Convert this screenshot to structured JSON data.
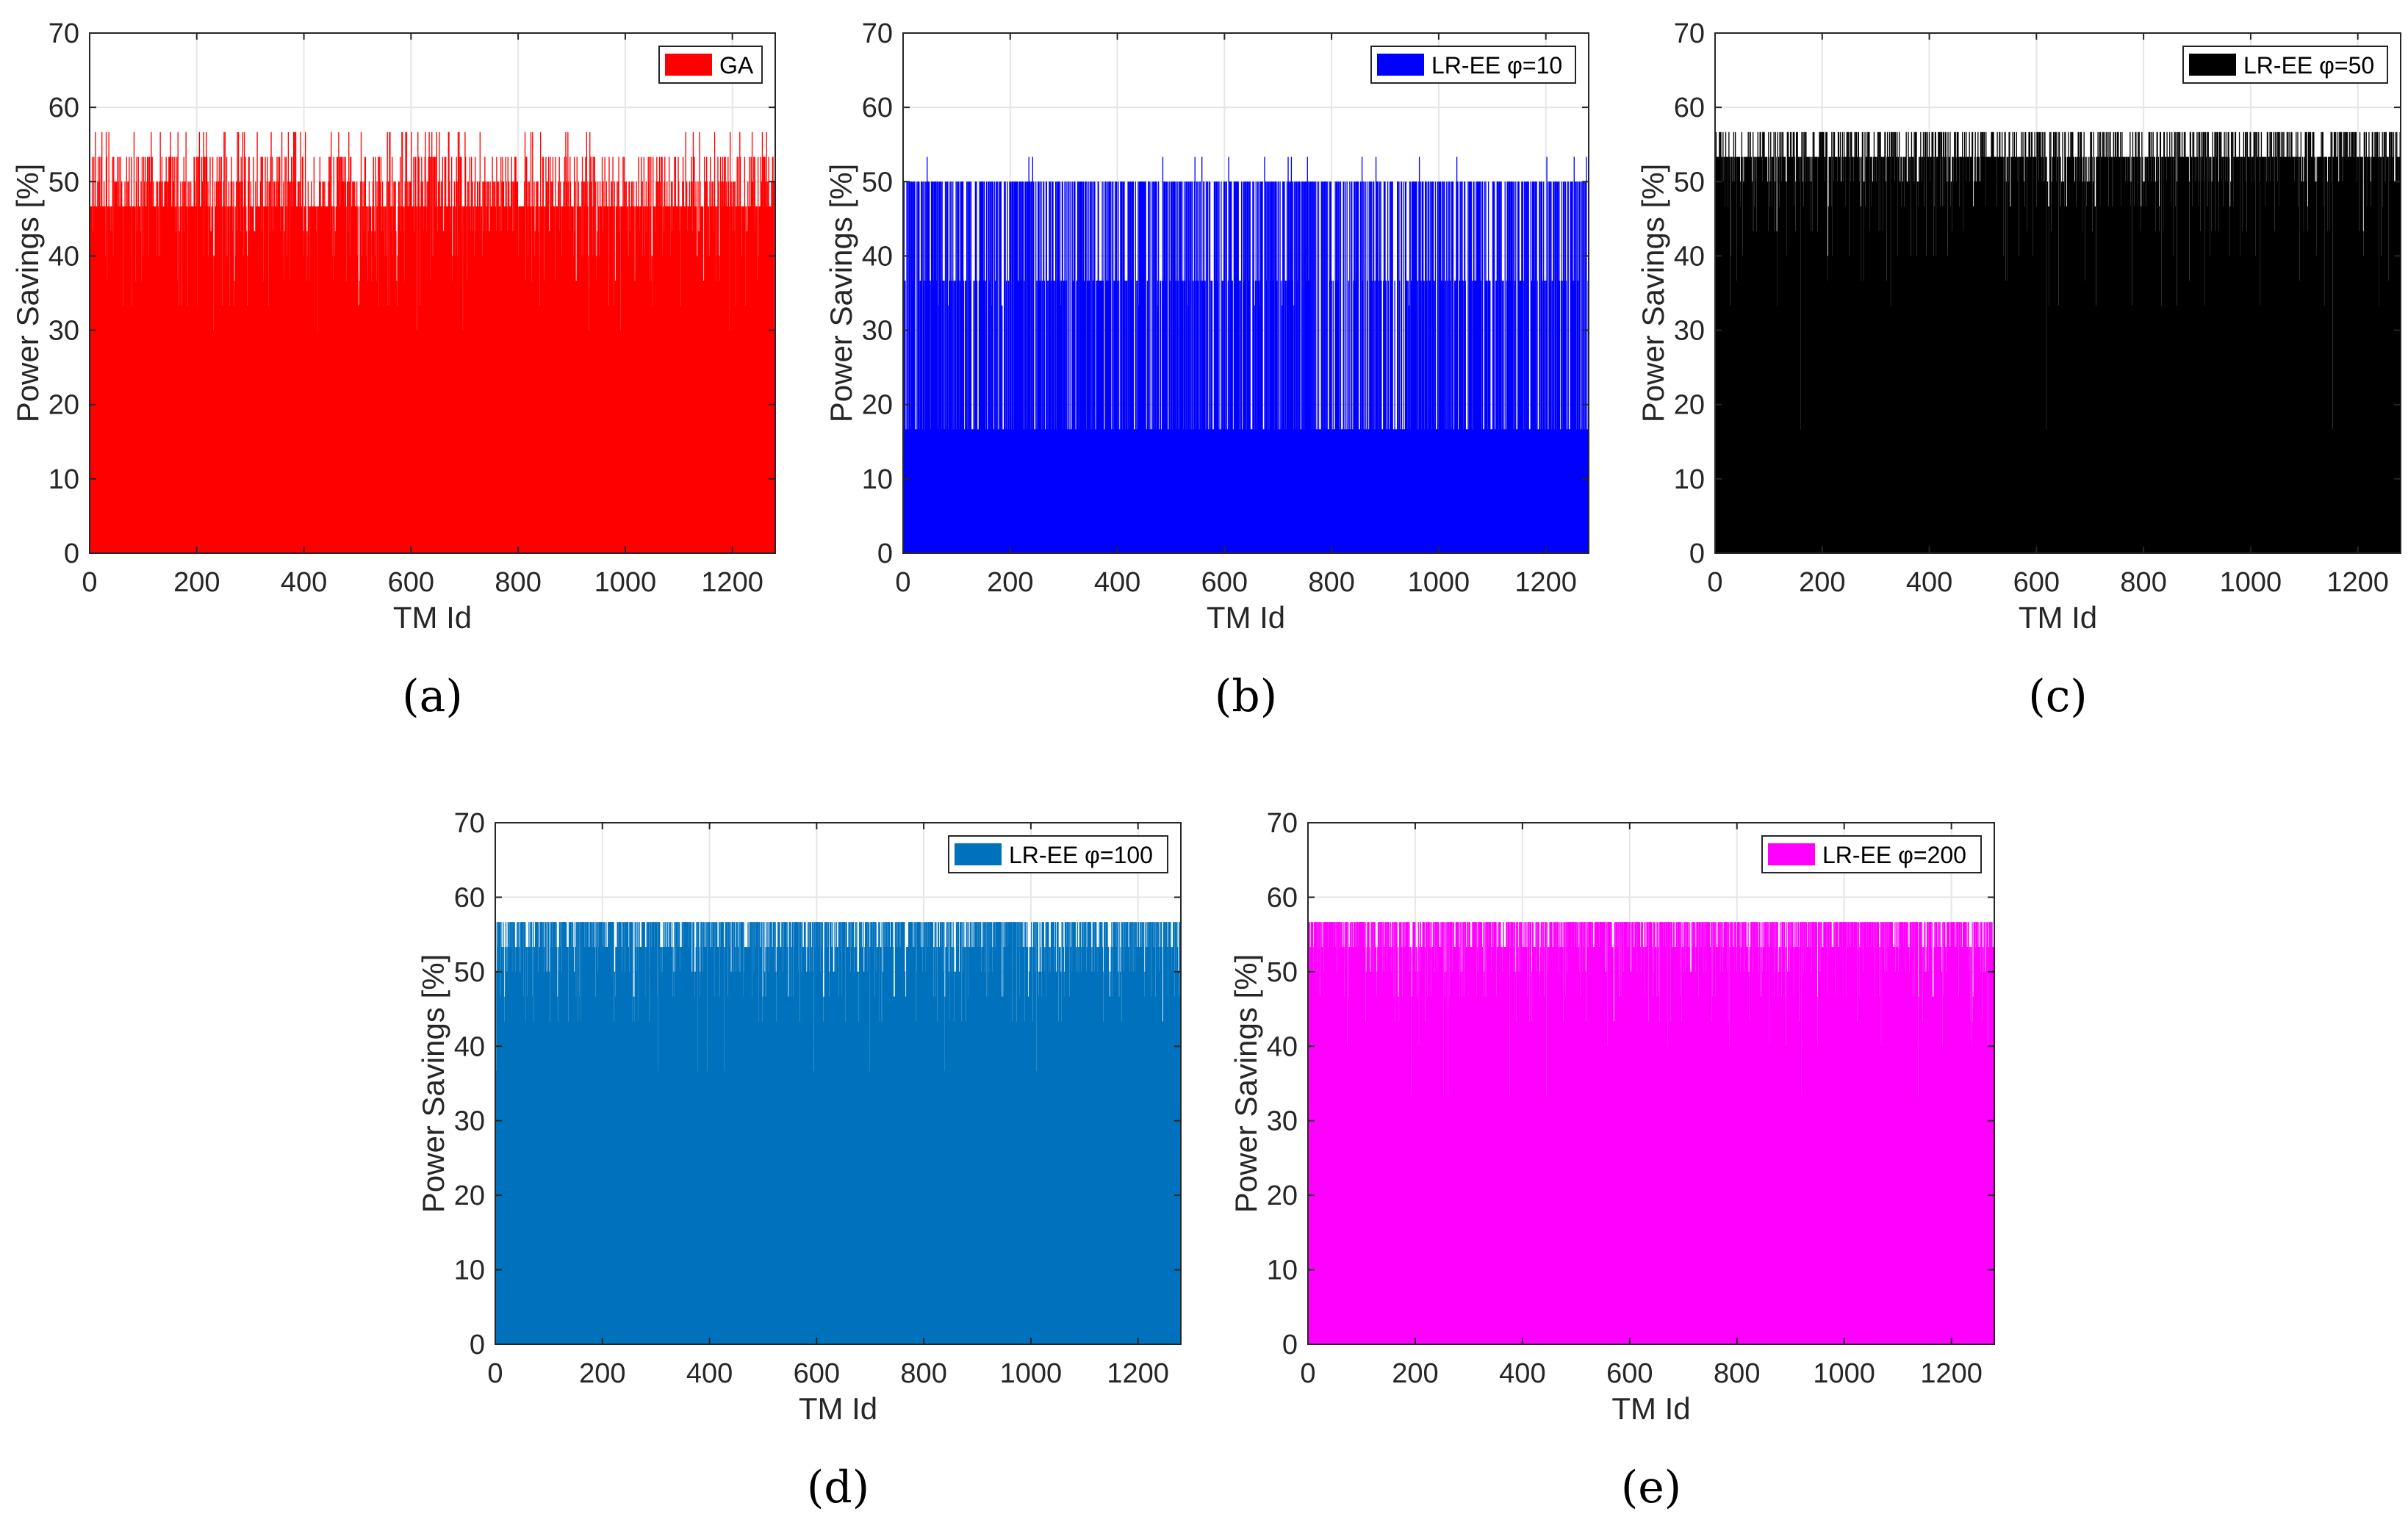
{
  "chart_data": [
    {
      "type": "bar",
      "panel_label": "(a)",
      "title": "",
      "legend": "GA",
      "legend_placement": "top-right",
      "color": "#ff0000",
      "xlabel": "TM Id",
      "ylabel": "Power Savings [%]",
      "xlim": [
        0,
        1280
      ],
      "ylim": [
        0,
        70
      ],
      "xticks": [
        0,
        200,
        400,
        600,
        800,
        1000,
        1200
      ],
      "yticks": [
        0,
        10,
        20,
        30,
        40,
        50,
        60,
        70
      ],
      "grid": true,
      "n_points": 1280,
      "levels": [
        46.67,
        50.0,
        53.33,
        56.67,
        43.33,
        40.0,
        36.67,
        33.33,
        30.0
      ],
      "level_weights": [
        0.4,
        0.2,
        0.16,
        0.07,
        0.07,
        0.05,
        0.03,
        0.015,
        0.005
      ],
      "seed": 11
    },
    {
      "type": "bar",
      "panel_label": "(b)",
      "title": "",
      "legend": "LR-EE φ=10",
      "legend_placement": "top-right",
      "color": "#0000ff",
      "xlabel": "TM Id",
      "ylabel": "Power Savings [%]",
      "xlim": [
        0,
        1280
      ],
      "ylim": [
        0,
        70
      ],
      "xticks": [
        0,
        200,
        400,
        600,
        800,
        1000,
        1200
      ],
      "yticks": [
        0,
        10,
        20,
        30,
        40,
        50,
        60,
        70
      ],
      "grid": true,
      "n_points": 1280,
      "levels": [
        50.0,
        36.67,
        16.67,
        53.33,
        33.33
      ],
      "level_weights": [
        0.5,
        0.2,
        0.27,
        0.02,
        0.01
      ],
      "seed": 23
    },
    {
      "type": "bar",
      "panel_label": "(c)",
      "title": "",
      "legend": "LR-EE φ=50",
      "legend_placement": "top-right",
      "color": "#000000",
      "xlabel": "TM Id",
      "ylabel": "Power Savings [%]",
      "xlim": [
        0,
        1280
      ],
      "ylim": [
        0,
        70
      ],
      "xticks": [
        0,
        200,
        400,
        600,
        800,
        1000,
        1200
      ],
      "yticks": [
        0,
        10,
        20,
        30,
        40,
        50,
        60,
        70
      ],
      "grid": true,
      "n_points": 1280,
      "levels": [
        53.33,
        56.67,
        50.0,
        46.67,
        43.33,
        40.0,
        36.67,
        33.33,
        16.67
      ],
      "level_weights": [
        0.45,
        0.3,
        0.12,
        0.06,
        0.03,
        0.02,
        0.01,
        0.007,
        0.003
      ],
      "seed": 37
    },
    {
      "type": "bar",
      "panel_label": "(d)",
      "title": "",
      "legend": "LR-EE φ=100",
      "legend_placement": "top-right",
      "color": "#0072bd",
      "xlabel": "TM Id",
      "ylabel": "Power Savings [%]",
      "xlim": [
        0,
        1280
      ],
      "ylim": [
        0,
        70
      ],
      "xticks": [
        0,
        200,
        400,
        600,
        800,
        1000,
        1200
      ],
      "yticks": [
        0,
        10,
        20,
        30,
        40,
        50,
        60,
        70
      ],
      "grid": true,
      "n_points": 1280,
      "levels": [
        56.67,
        53.33,
        50.0,
        46.67,
        43.33,
        36.67
      ],
      "level_weights": [
        0.55,
        0.28,
        0.09,
        0.05,
        0.025,
        0.005
      ],
      "seed": 41
    },
    {
      "type": "bar",
      "panel_label": "(e)",
      "title": "",
      "legend": "LR-EE φ=200",
      "legend_placement": "top-right",
      "color": "#ff00ff",
      "xlabel": "TM Id",
      "ylabel": "Power Savings [%]",
      "xlim": [
        0,
        1280
      ],
      "ylim": [
        0,
        70
      ],
      "xticks": [
        0,
        200,
        400,
        600,
        800,
        1000,
        1200
      ],
      "yticks": [
        0,
        10,
        20,
        30,
        40,
        50,
        60,
        70
      ],
      "grid": true,
      "n_points": 1280,
      "levels": [
        56.67,
        53.33,
        50.0,
        46.67,
        43.33,
        40.0,
        33.33
      ],
      "level_weights": [
        0.6,
        0.22,
        0.09,
        0.05,
        0.025,
        0.01,
        0.005
      ],
      "seed": 53
    }
  ]
}
